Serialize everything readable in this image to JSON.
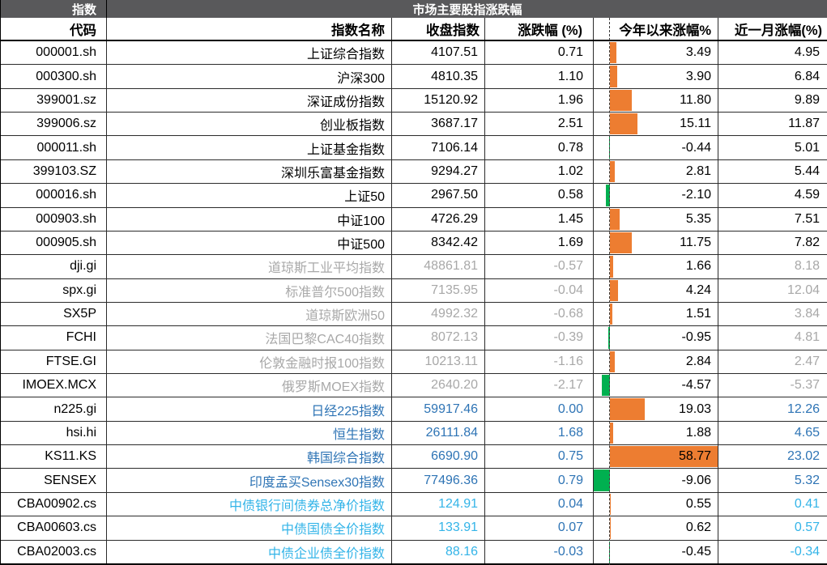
{
  "header": {
    "corner": "指数",
    "title": "市场主要股指涨跌幅"
  },
  "columns": [
    {
      "key": "code",
      "label": "代码"
    },
    {
      "key": "name",
      "label": "指数名称"
    },
    {
      "key": "close",
      "label": "收盘指数"
    },
    {
      "key": "chg",
      "label": "涨跌幅 (%)"
    },
    {
      "key": "ytd",
      "label": "今年以来涨幅%"
    },
    {
      "key": "m1",
      "label": "近一月涨幅(%)"
    }
  ],
  "databar": {
    "max": 58.77,
    "min": -9.06,
    "positive_color": "#ED7D31",
    "negative_color": "#00B050",
    "axis_style": "dashed"
  },
  "colors": {
    "header_bg": "#59595B",
    "header_text": "#FFFFFF",
    "group_cn": "#000000",
    "group_intl": "#A8A8A8",
    "group_asia": "#2E74B5",
    "group_bond": "#33B4E8"
  },
  "rows": [
    {
      "code": "000001.sh",
      "name": "上证综合指数",
      "close": "4107.51",
      "chg": "0.71",
      "ytd": 3.49,
      "ytd_display": "3.49",
      "m1": "4.95",
      "group": "cn"
    },
    {
      "code": "000300.sh",
      "name": "沪深300",
      "close": "4810.35",
      "chg": "1.10",
      "ytd": 3.9,
      "ytd_display": "3.90",
      "m1": "6.84",
      "group": "cn"
    },
    {
      "code": "399001.sz",
      "name": "深证成份指数",
      "close": "15120.92",
      "chg": "1.96",
      "ytd": 11.8,
      "ytd_display": "11.80",
      "m1": "9.89",
      "group": "cn"
    },
    {
      "code": "399006.sz",
      "name": "创业板指数",
      "close": "3687.17",
      "chg": "2.51",
      "ytd": 15.11,
      "ytd_display": "15.11",
      "m1": "11.87",
      "group": "cn"
    },
    {
      "code": "000011.sh",
      "name": "上证基金指数",
      "close": "7106.14",
      "chg": "0.78",
      "ytd": -0.44,
      "ytd_display": "-0.44",
      "m1": "5.01",
      "group": "cn"
    },
    {
      "code": "399103.SZ",
      "name": "深圳乐富基金指数",
      "close": "9294.27",
      "chg": "1.02",
      "ytd": 2.81,
      "ytd_display": "2.81",
      "m1": "5.44",
      "group": "cn"
    },
    {
      "code": "000016.sh",
      "name": "上证50",
      "close": "2967.50",
      "chg": "0.58",
      "ytd": -2.1,
      "ytd_display": "-2.10",
      "m1": "4.59",
      "group": "cn"
    },
    {
      "code": "000903.sh",
      "name": "中证100",
      "close": "4726.29",
      "chg": "1.45",
      "ytd": 5.35,
      "ytd_display": "5.35",
      "m1": "7.51",
      "group": "cn"
    },
    {
      "code": "000905.sh",
      "name": "中证500",
      "close": "8342.42",
      "chg": "1.69",
      "ytd": 11.75,
      "ytd_display": "11.75",
      "m1": "7.82",
      "group": "cn"
    },
    {
      "code": "dji.gi",
      "name": "道琼斯工业平均指数",
      "close": "48861.81",
      "chg": "-0.57",
      "ytd": 1.66,
      "ytd_display": "1.66",
      "m1": "8.18",
      "group": "intl"
    },
    {
      "code": "spx.gi",
      "name": "标准普尔500指数",
      "close": "7135.95",
      "chg": "-0.04",
      "ytd": 4.24,
      "ytd_display": "4.24",
      "m1": "12.04",
      "group": "intl"
    },
    {
      "code": "SX5P",
      "name": "道琼斯欧洲50",
      "close": "4992.32",
      "chg": "-0.68",
      "ytd": 1.51,
      "ytd_display": "1.51",
      "m1": "3.84",
      "group": "intl"
    },
    {
      "code": "FCHI",
      "name": "法国巴黎CAC40指数",
      "close": "8072.13",
      "chg": "-0.39",
      "ytd": -0.95,
      "ytd_display": "-0.95",
      "m1": "4.81",
      "group": "intl"
    },
    {
      "code": "FTSE.GI",
      "name": "伦敦金融时报100指数",
      "close": "10213.11",
      "chg": "-1.16",
      "ytd": 2.84,
      "ytd_display": "2.84",
      "m1": "2.47",
      "group": "intl"
    },
    {
      "code": "IMOEX.MCX",
      "name": "俄罗斯MOEX指数",
      "close": "2640.20",
      "chg": "-2.17",
      "ytd": -4.57,
      "ytd_display": "-4.57",
      "m1": "-5.37",
      "group": "intl"
    },
    {
      "code": "n225.gi",
      "name": "日经225指数",
      "close": "59917.46",
      "chg": "0.00",
      "ytd": 19.03,
      "ytd_display": "19.03",
      "m1": "12.26",
      "group": "asia"
    },
    {
      "code": "hsi.hi",
      "name": "恒生指数",
      "close": "26111.84",
      "chg": "1.68",
      "ytd": 1.88,
      "ytd_display": "1.88",
      "m1": "4.65",
      "group": "asia"
    },
    {
      "code": "KS11.KS",
      "name": "韩国综合指数",
      "close": "6690.90",
      "chg": "0.75",
      "ytd": 58.77,
      "ytd_display": "58.77",
      "m1": "23.02",
      "group": "asia"
    },
    {
      "code": "SENSEX",
      "name": "印度孟买Sensex30指数",
      "close": "77496.36",
      "chg": "0.79",
      "ytd": -9.06,
      "ytd_display": "-9.06",
      "m1": "5.32",
      "group": "asia"
    },
    {
      "code": "CBA00902.cs",
      "name": "中债银行间债券总净价指数",
      "close": "124.91",
      "chg": "0.04",
      "ytd": 0.55,
      "ytd_display": "0.55",
      "m1": "0.41",
      "group": "bond"
    },
    {
      "code": "CBA00603.cs",
      "name": "中债国债全价指数",
      "close": "133.91",
      "chg": "0.07",
      "ytd": 0.62,
      "ytd_display": "0.62",
      "m1": "0.57",
      "group": "bond"
    },
    {
      "code": "CBA02003.cs",
      "name": "中债企业债全价指数",
      "close": "88.16",
      "chg": "-0.03",
      "ytd": -0.45,
      "ytd_display": "-0.45",
      "m1": "-0.34",
      "group": "bond"
    }
  ]
}
